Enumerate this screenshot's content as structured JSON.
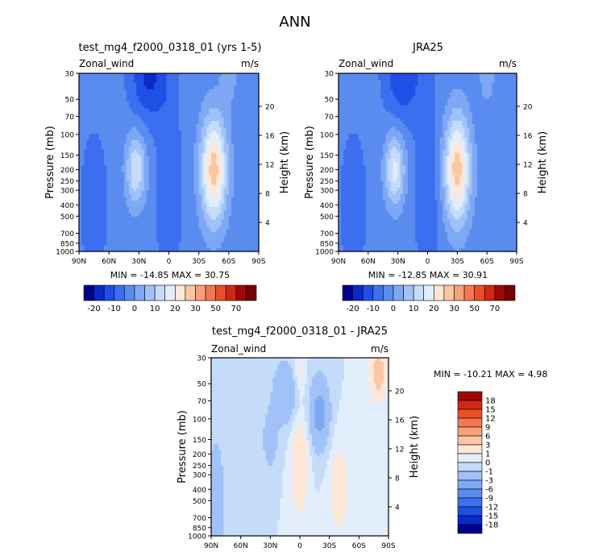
{
  "figure_title": "ANN",
  "pressure_ticks": [
    "30",
    "50",
    "70",
    "100",
    "150",
    "200",
    "250",
    "300",
    "400",
    "500",
    "700",
    "850",
    "1000"
  ],
  "height_ticks": [
    "20",
    "16",
    "12",
    "8",
    "4"
  ],
  "chart_data": [
    {
      "type": "heatmap",
      "title": "test_mg4_f2000_0318_01 (yrs 1-5)",
      "field_label": "Zonal_wind",
      "units": "m/s",
      "xlabel": "",
      "ylabel": "Pressure (mb)",
      "ylabel_right": "Height (km)",
      "x_ticks": [
        "90N",
        "60N",
        "30N",
        "0",
        "30S",
        "60S",
        "90S"
      ],
      "stats": "MIN = -14.85   MAX =  30.75",
      "min": -14.85,
      "max": 30.75,
      "colorbar_levels": [
        "-20",
        "-10",
        "0",
        "10",
        "20",
        "30",
        "50",
        "70"
      ],
      "jets": [
        {
          "lat": -45,
          "pressure": 200,
          "peak": 30.75
        },
        {
          "lat": 33,
          "pressure": 200,
          "peak": 18
        },
        {
          "lat": 20,
          "pressure": 30,
          "peak": -14.85
        }
      ]
    },
    {
      "type": "heatmap",
      "title": "JRA25",
      "field_label": "Zonal_wind",
      "units": "m/s",
      "xlabel": "",
      "ylabel": "Pressure (mb)",
      "ylabel_right": "Height (km)",
      "x_ticks": [
        "90N",
        "60N",
        "30N",
        "0",
        "30S",
        "60S",
        "90S"
      ],
      "stats": "MIN = -12.85   MAX =  30.91",
      "min": -12.85,
      "max": 30.91,
      "colorbar_levels": [
        "-20",
        "-10",
        "0",
        "10",
        "20",
        "30",
        "50",
        "70"
      ],
      "jets": [
        {
          "lat": -30,
          "pressure": 200,
          "peak": 30.91
        },
        {
          "lat": 33,
          "pressure": 200,
          "peak": 20
        },
        {
          "lat": 25,
          "pressure": 30,
          "peak": -12.85
        }
      ]
    },
    {
      "type": "heatmap",
      "title": "test_mg4_f2000_0318_01 - JRA25",
      "field_label": "Zonal_wind",
      "units": "m/s",
      "xlabel": "",
      "ylabel": "Pressure (mb)",
      "ylabel_right": "Height (km)",
      "x_ticks": [
        "90N",
        "60N",
        "30N",
        "0",
        "30S",
        "60S",
        "90S"
      ],
      "stats": "MIN = -10.21   MAX =   4.98",
      "min": -10.21,
      "max": 4.98,
      "colorbar_levels": [
        "18",
        "15",
        "12",
        "9",
        "6",
        "3",
        "1",
        "0",
        "-1",
        "-3",
        "-6",
        "-9",
        "-12",
        "-15",
        "-18"
      ]
    }
  ],
  "colors": {
    "full_scale": [
      "#00008c",
      "#0a2ac8",
      "#1e50e6",
      "#3c6ef0",
      "#5a8cf0",
      "#7ea8f4",
      "#a0c2f8",
      "#c4dcfa",
      "#e2eefc",
      "#fde8d8",
      "#fbc6a4",
      "#f8a078",
      "#f4784e",
      "#ec4e28",
      "#d02814",
      "#a00808",
      "#780000"
    ],
    "diff_scale": [
      "#00008c",
      "#0a2ac8",
      "#1e50e6",
      "#3c6ef0",
      "#5a8cf0",
      "#7ea8f4",
      "#a0c2f8",
      "#c4dcfa",
      "#e2eefc",
      "#fde8d8",
      "#fbc6a4",
      "#f8a078",
      "#f4784e",
      "#ec4e28",
      "#d02814",
      "#a00808"
    ]
  }
}
